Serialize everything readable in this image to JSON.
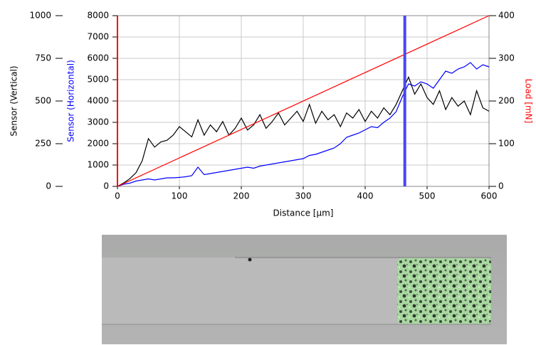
{
  "chart_data": {
    "type": "line",
    "x_label": "Distance [µm]",
    "xlim": [
      0,
      600
    ],
    "xticks": [
      0,
      100,
      200,
      300,
      400,
      500,
      600
    ],
    "grid": true,
    "y_axes": [
      {
        "label": "Sensor (Vertical)",
        "color": "#000000",
        "lim": [
          0,
          1000
        ],
        "ticks": [
          0,
          250,
          500,
          750,
          1000
        ]
      },
      {
        "label": "Sensor (Horizontal)",
        "color": "#0000ff",
        "lim": [
          0,
          8000
        ],
        "ticks": [
          0,
          1000,
          2000,
          3000,
          4000,
          5000,
          6000,
          7000,
          8000
        ]
      },
      {
        "label": "Load [mN]",
        "color": "#ff0000",
        "lim": [
          0,
          400
        ],
        "ticks": [
          0,
          100,
          200,
          300,
          400
        ]
      }
    ],
    "x": [
      0,
      10,
      20,
      30,
      40,
      50,
      60,
      70,
      80,
      90,
      100,
      110,
      120,
      130,
      140,
      150,
      160,
      170,
      180,
      190,
      200,
      210,
      220,
      230,
      240,
      250,
      260,
      270,
      280,
      290,
      300,
      310,
      320,
      330,
      340,
      350,
      360,
      370,
      380,
      390,
      400,
      410,
      420,
      430,
      440,
      450,
      460,
      470,
      480,
      490,
      500,
      510,
      520,
      530,
      540,
      550,
      560,
      570,
      580,
      590,
      600
    ],
    "series": [
      {
        "axis": 1,
        "color": "#0000ff",
        "values": [
          0,
          100,
          150,
          250,
          300,
          350,
          300,
          350,
          400,
          400,
          420,
          450,
          500,
          900,
          550,
          600,
          650,
          700,
          750,
          800,
          850,
          900,
          850,
          950,
          1000,
          1050,
          1100,
          1150,
          1200,
          1250,
          1300,
          1450,
          1500,
          1600,
          1700,
          1800,
          2000,
          2300,
          2400,
          2500,
          2650,
          2800,
          2750,
          3000,
          3200,
          3500,
          4200,
          4800,
          4700,
          4900,
          4800,
          4600,
          5000,
          5400,
          5300,
          5500,
          5600,
          5800,
          5500,
          5700,
          5600
        ]
      },
      {
        "axis": 0,
        "color": "#000000",
        "values": [
          0,
          20,
          45,
          80,
          150,
          280,
          230,
          260,
          270,
          300,
          350,
          320,
          290,
          390,
          300,
          360,
          320,
          380,
          300,
          340,
          400,
          330,
          360,
          420,
          340,
          380,
          430,
          360,
          400,
          440,
          380,
          480,
          370,
          440,
          390,
          420,
          350,
          430,
          400,
          450,
          380,
          440,
          400,
          460,
          420,
          480,
          560,
          640,
          540,
          600,
          520,
          480,
          560,
          450,
          520,
          470,
          500,
          420,
          560,
          460,
          440
        ]
      },
      {
        "axis": 2,
        "color": "#ff0000",
        "x": [
          0,
          600
        ],
        "values": [
          0,
          400
        ]
      }
    ],
    "marker": {
      "x": 464,
      "color": "#4848f0"
    }
  }
}
